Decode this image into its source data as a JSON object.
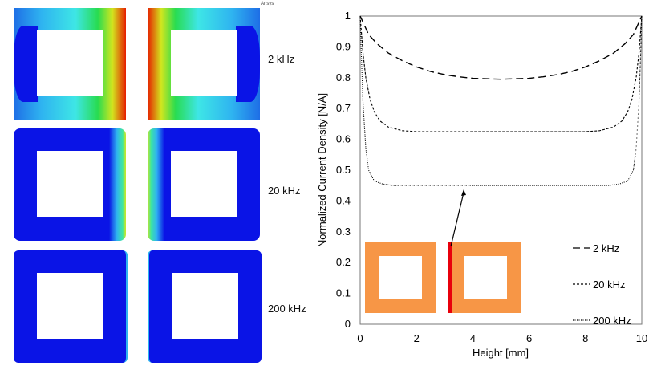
{
  "logo_text": "Ansys",
  "field_plots": {
    "rows": [
      {
        "label": "2 kHz"
      },
      {
        "label": "20 kHz"
      },
      {
        "label": "200 kHz"
      }
    ]
  },
  "colors": {
    "conductor": "#f79646",
    "highlight": "#e8000b",
    "low": "#0a14e6",
    "high": "#e61e00"
  },
  "chart_data": {
    "type": "line",
    "xlabel": "Height [mm]",
    "ylabel": "Normalized Current Density [N/A]",
    "xlim": [
      0,
      10
    ],
    "ylim": [
      0,
      1
    ],
    "xticks": [
      "0",
      "2",
      "4",
      "6",
      "8",
      "10"
    ],
    "yticks": [
      "0",
      "0.1",
      "0.2",
      "0.3",
      "0.4",
      "0.5",
      "0.6",
      "0.7",
      "0.8",
      "0.9",
      "1"
    ],
    "grid": false,
    "legend": "bottom-right",
    "series": [
      {
        "name": "2 kHz",
        "style": "dashed",
        "x": [
          0,
          0.3,
          0.6,
          1,
          1.5,
          2,
          2.5,
          3,
          3.5,
          4,
          5,
          6,
          6.5,
          7,
          7.5,
          8,
          8.5,
          9,
          9.4,
          9.7,
          10
        ],
        "y": [
          1,
          0.94,
          0.91,
          0.88,
          0.855,
          0.835,
          0.82,
          0.81,
          0.803,
          0.798,
          0.795,
          0.798,
          0.803,
          0.81,
          0.82,
          0.835,
          0.855,
          0.88,
          0.91,
          0.94,
          1
        ]
      },
      {
        "name": "20 kHz",
        "style": "short-dashed",
        "x": [
          0,
          0.1,
          0.2,
          0.35,
          0.5,
          0.7,
          1,
          1.5,
          2,
          5,
          8,
          8.5,
          9,
          9.3,
          9.5,
          9.65,
          9.8,
          9.9,
          10
        ],
        "y": [
          1,
          0.88,
          0.8,
          0.73,
          0.69,
          0.66,
          0.64,
          0.628,
          0.625,
          0.625,
          0.625,
          0.628,
          0.64,
          0.66,
          0.69,
          0.73,
          0.8,
          0.88,
          1
        ]
      },
      {
        "name": "200 kHz",
        "style": "dotted",
        "x": [
          0,
          0.05,
          0.1,
          0.2,
          0.3,
          0.5,
          0.8,
          1.2,
          5,
          8.8,
          9.2,
          9.5,
          9.7,
          9.8,
          9.9,
          9.95,
          10
        ],
        "y": [
          1,
          0.85,
          0.72,
          0.57,
          0.5,
          0.465,
          0.455,
          0.45,
          0.45,
          0.45,
          0.455,
          0.465,
          0.5,
          0.57,
          0.72,
          0.85,
          1
        ]
      }
    ]
  }
}
